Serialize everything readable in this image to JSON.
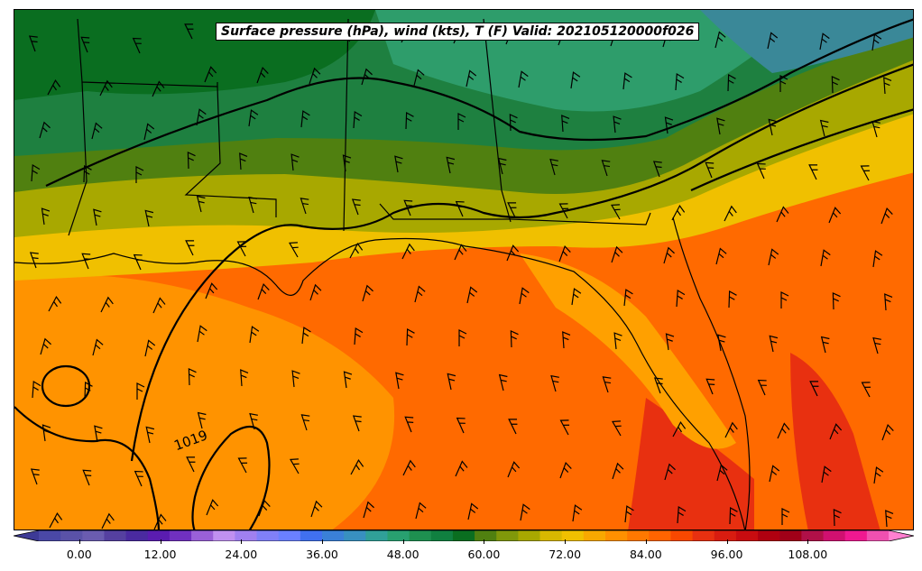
{
  "title": "Surface pressure (hPa), wind (kts), T (F) Valid: 202105120000f026",
  "isobar_label": "1019",
  "colorbar": {
    "tick_labels": [
      "0.00",
      "12.00",
      "24.00",
      "36.00",
      "48.00",
      "60.00",
      "72.00",
      "84.00",
      "96.00",
      "108.00"
    ],
    "tick_values": [
      0,
      12,
      24,
      36,
      48,
      60,
      72,
      84,
      96,
      108
    ],
    "min": -6,
    "max": 120,
    "step": 3,
    "colors": [
      "#3d3a96",
      "#4a48a6",
      "#5a52a8",
      "#6a5cb0",
      "#5540a0",
      "#4a2aa0",
      "#5a1cb0",
      "#7030c0",
      "#9a60d8",
      "#c090f0",
      "#a080f0",
      "#8080f8",
      "#6a80ff",
      "#4070f0",
      "#3a80d8",
      "#3890c0",
      "#30a098",
      "#28a070",
      "#1e9050",
      "#108040",
      "#0a6e20",
      "#508010",
      "#80980a",
      "#a8a800",
      "#d8b800",
      "#f0c000",
      "#f8a800",
      "#ff9000",
      "#ff7800",
      "#ff6400",
      "#f84800",
      "#e83010",
      "#d81c10",
      "#c80c10",
      "#b00010",
      "#a00018",
      "#b01048",
      "#d01070",
      "#f01890",
      "#f050b0",
      "#ff80d0"
    ]
  },
  "map_colors": {
    "background": "#ff6a00",
    "warm_orange": "#ff9a00",
    "hot": "#e83010",
    "yellow": "#f0c000",
    "olive": "#a8a800",
    "light_green": "#508010",
    "green": "#1e8040",
    "dark_green": "#0a6e20",
    "teal": "#30a090",
    "blue_teal": "#3a8898"
  },
  "legend_region": "bottom"
}
